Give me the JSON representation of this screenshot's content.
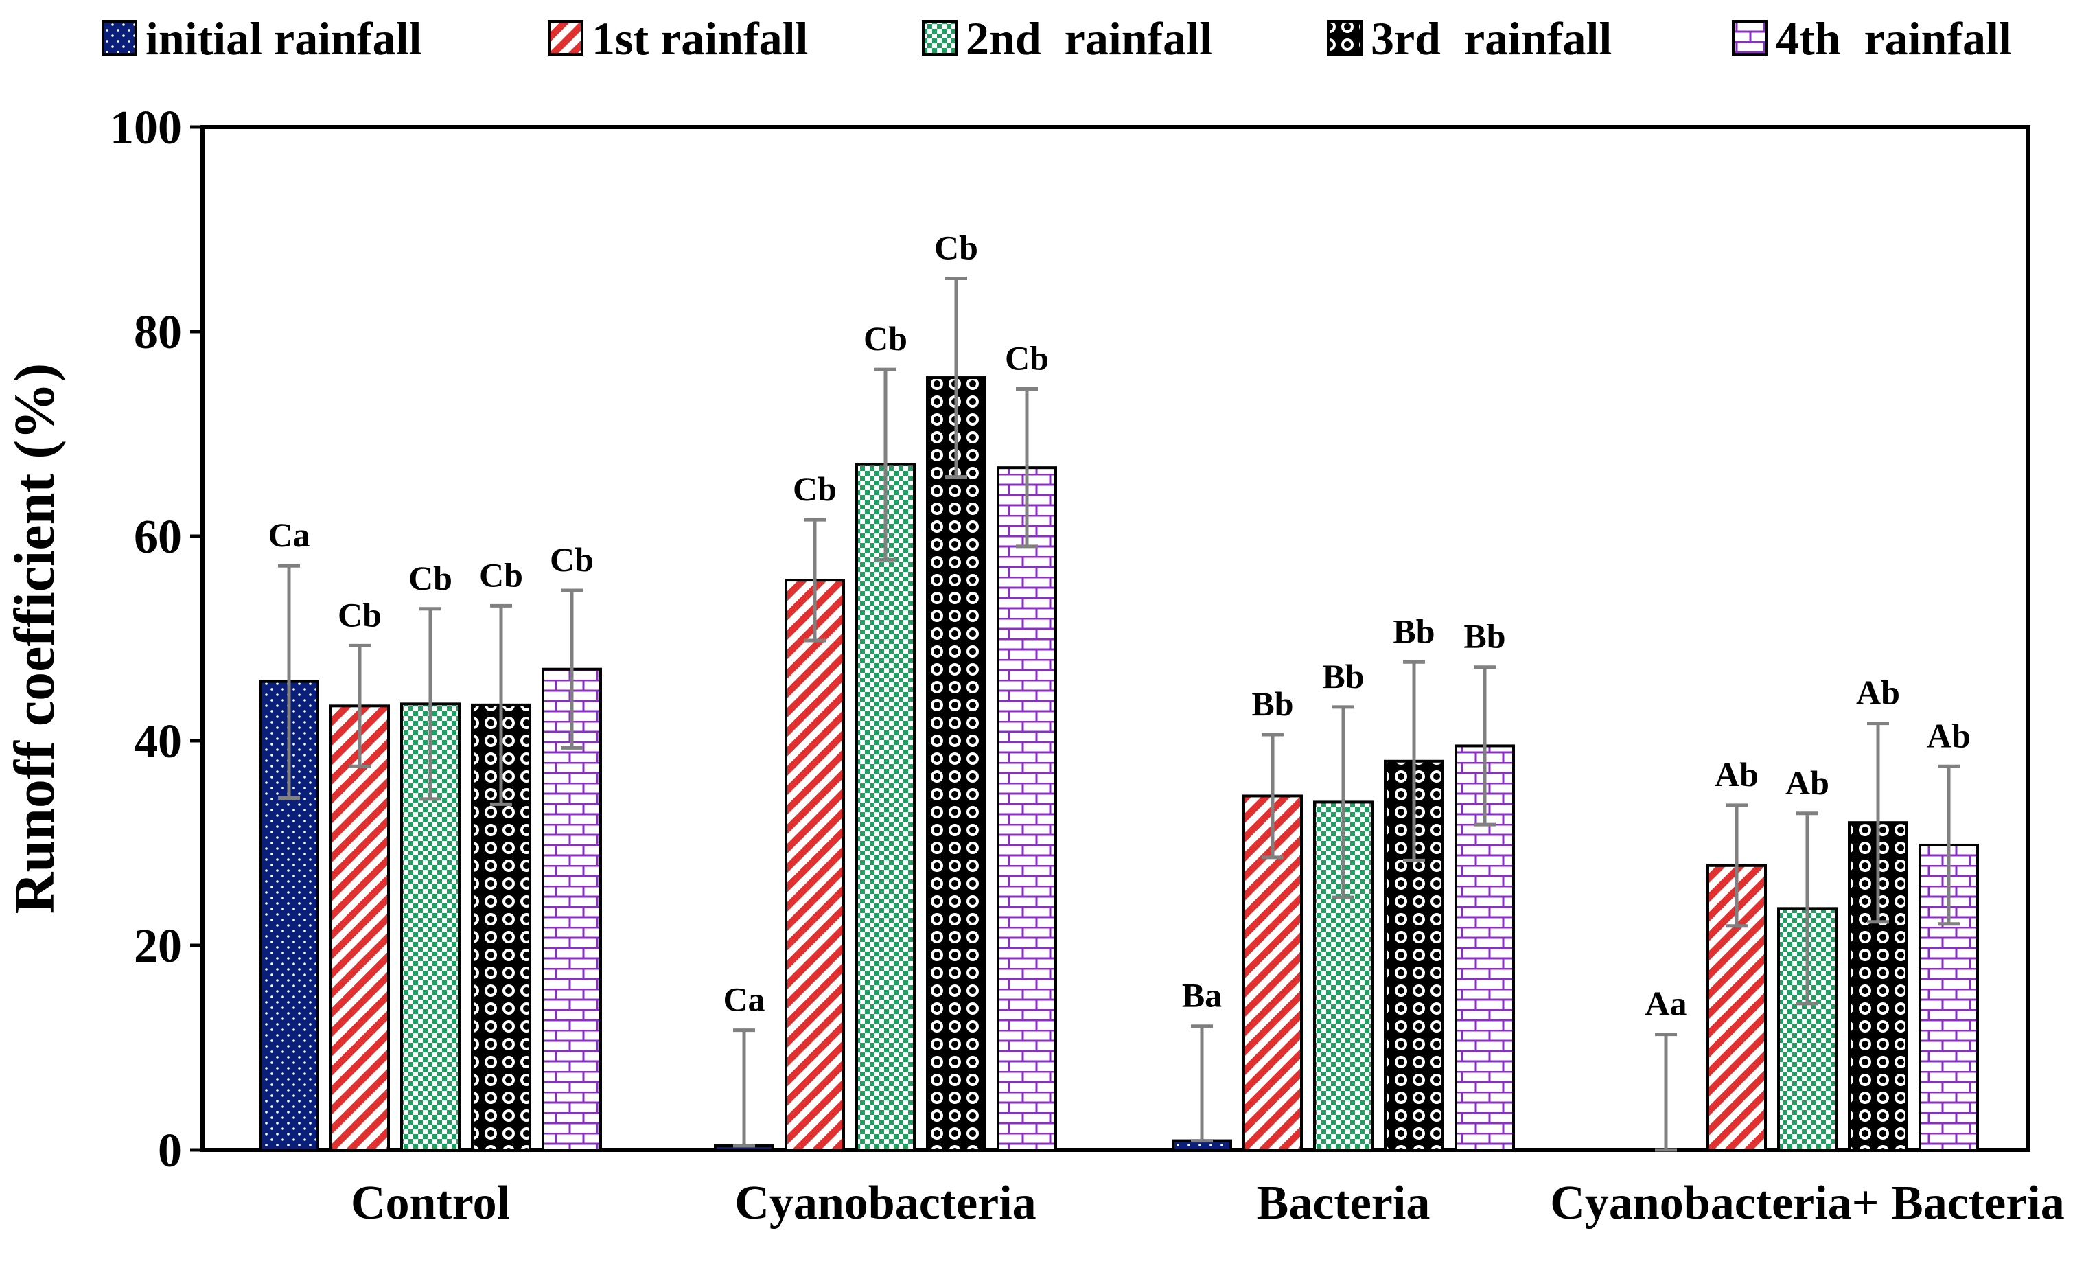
{
  "chart_data": {
    "type": "bar",
    "title": "",
    "xlabel": "",
    "ylabel": "Runoff coefficient (%)",
    "ylim": [
      0,
      100
    ],
    "yticks": [
      0,
      20,
      40,
      60,
      80,
      100
    ],
    "categories": [
      "Control",
      "Cyanobacteria",
      "Bacteria",
      "Cyanobacteria+ Bacteria"
    ],
    "legend_position": "top",
    "series": [
      {
        "name": "initial rainfall",
        "color": "#0a1f7a",
        "pattern": "dots",
        "values": [
          45.8,
          0.4,
          0.9,
          0.0
        ],
        "error_upper": [
          57.1,
          11.7,
          12.1,
          11.3
        ],
        "error_lower": [
          34.4,
          0.4,
          0.9,
          0.0
        ],
        "labels": [
          "Ca",
          "Ca",
          "Ba",
          "Aa"
        ]
      },
      {
        "name": "1st rainfall",
        "color": "#e03030",
        "pattern": "diagonal",
        "values": [
          43.4,
          55.7,
          34.6,
          27.8
        ],
        "error_upper": [
          49.3,
          61.6,
          40.6,
          33.7
        ],
        "error_lower": [
          37.5,
          49.8,
          28.6,
          21.9
        ],
        "labels": [
          "Cb",
          "Cb",
          "Bb",
          "Ab"
        ]
      },
      {
        "name": "2nd  rainfall",
        "color": "#20a060",
        "pattern": "checker",
        "values": [
          43.6,
          67.0,
          34.0,
          23.6
        ],
        "error_upper": [
          52.9,
          76.3,
          43.3,
          32.9
        ],
        "error_lower": [
          34.3,
          57.7,
          24.7,
          14.3
        ],
        "labels": [
          "Cb",
          "Cb",
          "Bb",
          "Ab"
        ]
      },
      {
        "name": "3rd  rainfall",
        "color": "#000000",
        "pattern": "circles",
        "values": [
          43.5,
          75.5,
          38.0,
          32.0
        ],
        "error_upper": [
          53.2,
          85.2,
          47.7,
          41.7
        ],
        "error_lower": [
          33.8,
          65.8,
          28.3,
          22.3
        ],
        "labels": [
          "Cb",
          "Cb",
          "Bb",
          "Ab"
        ]
      },
      {
        "name": "4th  rainfall",
        "color": "#8a30c0",
        "pattern": "bricks",
        "values": [
          47.0,
          66.7,
          39.5,
          29.8
        ],
        "error_upper": [
          54.7,
          74.4,
          47.2,
          37.5
        ],
        "error_lower": [
          39.3,
          59.0,
          31.8,
          22.1
        ],
        "labels": [
          "Cb",
          "Cb",
          "Bb",
          "Ab"
        ]
      }
    ]
  }
}
